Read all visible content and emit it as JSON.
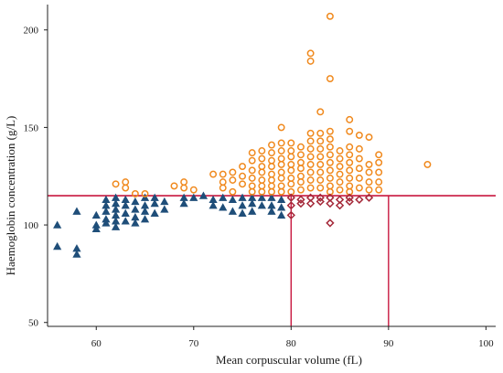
{
  "chart_data": {
    "type": "scatter",
    "title": "",
    "xlabel": "Mean corpuscular volume (fL)",
    "ylabel": "Haemoglobin concentration (g/L)",
    "xlim": [
      55,
      101
    ],
    "ylim": [
      48,
      213
    ],
    "xticks": [
      60,
      70,
      80,
      90,
      100
    ],
    "yticks": [
      50,
      100,
      150,
      200
    ],
    "reference_lines": {
      "horizontal": [
        {
          "y": 115,
          "color": "#c8173f"
        }
      ],
      "vertical": [
        {
          "x": 80,
          "color": "#c8173f"
        },
        {
          "x": 90,
          "color": "#c8173f"
        }
      ]
    },
    "series": [
      {
        "marker": "triangle",
        "color": "#1f4e79",
        "points": [
          [
            56,
            100
          ],
          [
            56,
            89
          ],
          [
            58,
            107
          ],
          [
            58,
            88
          ],
          [
            58,
            85
          ],
          [
            60,
            105
          ],
          [
            60,
            100
          ],
          [
            60,
            98
          ],
          [
            61,
            113
          ],
          [
            61,
            110
          ],
          [
            61,
            107
          ],
          [
            61,
            103
          ],
          [
            61,
            101
          ],
          [
            62,
            114
          ],
          [
            62,
            111
          ],
          [
            62,
            108
          ],
          [
            62,
            105
          ],
          [
            62,
            102
          ],
          [
            62,
            99
          ],
          [
            63,
            113
          ],
          [
            63,
            110
          ],
          [
            63,
            106
          ],
          [
            63,
            102
          ],
          [
            64,
            112
          ],
          [
            64,
            108
          ],
          [
            64,
            104
          ],
          [
            64,
            101
          ],
          [
            65,
            114
          ],
          [
            65,
            110
          ],
          [
            65,
            107
          ],
          [
            65,
            103
          ],
          [
            66,
            114
          ],
          [
            66,
            111
          ],
          [
            66,
            106
          ],
          [
            67,
            112
          ],
          [
            67,
            108
          ],
          [
            69,
            114
          ],
          [
            69,
            111
          ],
          [
            70,
            114
          ],
          [
            71,
            115
          ],
          [
            72,
            113
          ],
          [
            72,
            110
          ],
          [
            73,
            114
          ],
          [
            73,
            109
          ],
          [
            74,
            113
          ],
          [
            74,
            107
          ],
          [
            75,
            114
          ],
          [
            75,
            110
          ],
          [
            75,
            106
          ],
          [
            76,
            114
          ],
          [
            76,
            111
          ],
          [
            76,
            107
          ],
          [
            77,
            114
          ],
          [
            77,
            110
          ],
          [
            78,
            114
          ],
          [
            78,
            110
          ],
          [
            78,
            107
          ],
          [
            79,
            113
          ],
          [
            79,
            109
          ],
          [
            79,
            105
          ]
        ]
      },
      {
        "marker": "circle",
        "color": "#f0891d",
        "points": [
          [
            62,
            121
          ],
          [
            63,
            122
          ],
          [
            63,
            119
          ],
          [
            64,
            116
          ],
          [
            65,
            116
          ],
          [
            68,
            120
          ],
          [
            69,
            122
          ],
          [
            69,
            119
          ],
          [
            70,
            118
          ],
          [
            72,
            126
          ],
          [
            73,
            126
          ],
          [
            73,
            122
          ],
          [
            73,
            119
          ],
          [
            74,
            127
          ],
          [
            74,
            123
          ],
          [
            74,
            117
          ],
          [
            75,
            130
          ],
          [
            75,
            125
          ],
          [
            75,
            121
          ],
          [
            76,
            137
          ],
          [
            76,
            133
          ],
          [
            76,
            128
          ],
          [
            76,
            124
          ],
          [
            76,
            120
          ],
          [
            76,
            117
          ],
          [
            77,
            138
          ],
          [
            77,
            134
          ],
          [
            77,
            130
          ],
          [
            77,
            127
          ],
          [
            77,
            123
          ],
          [
            77,
            120
          ],
          [
            77,
            117
          ],
          [
            78,
            141
          ],
          [
            78,
            137
          ],
          [
            78,
            133
          ],
          [
            78,
            130
          ],
          [
            78,
            126
          ],
          [
            78,
            123
          ],
          [
            78,
            120
          ],
          [
            78,
            117
          ],
          [
            79,
            150
          ],
          [
            79,
            142
          ],
          [
            79,
            138
          ],
          [
            79,
            134
          ],
          [
            79,
            131
          ],
          [
            79,
            127
          ],
          [
            79,
            124
          ],
          [
            79,
            120
          ],
          [
            79,
            117
          ],
          [
            80,
            142
          ],
          [
            80,
            138
          ],
          [
            80,
            135
          ],
          [
            80,
            131
          ],
          [
            80,
            128
          ],
          [
            80,
            124
          ],
          [
            80,
            121
          ],
          [
            80,
            117
          ],
          [
            81,
            140
          ],
          [
            81,
            136
          ],
          [
            81,
            132
          ],
          [
            81,
            129
          ],
          [
            81,
            125
          ],
          [
            81,
            122
          ],
          [
            81,
            118
          ],
          [
            82,
            188
          ],
          [
            82,
            184
          ],
          [
            82,
            147
          ],
          [
            82,
            143
          ],
          [
            82,
            139
          ],
          [
            82,
            135
          ],
          [
            82,
            131
          ],
          [
            82,
            127
          ],
          [
            82,
            123
          ],
          [
            82,
            119
          ],
          [
            83,
            158
          ],
          [
            83,
            147
          ],
          [
            83,
            143
          ],
          [
            83,
            139
          ],
          [
            83,
            135
          ],
          [
            83,
            131
          ],
          [
            83,
            127
          ],
          [
            83,
            123
          ],
          [
            83,
            119
          ],
          [
            84,
            207
          ],
          [
            84,
            175
          ],
          [
            84,
            148
          ],
          [
            84,
            144
          ],
          [
            84,
            140
          ],
          [
            84,
            136
          ],
          [
            84,
            132
          ],
          [
            84,
            128
          ],
          [
            84,
            124
          ],
          [
            84,
            120
          ],
          [
            84,
            117
          ],
          [
            85,
            138
          ],
          [
            85,
            134
          ],
          [
            85,
            130
          ],
          [
            85,
            126
          ],
          [
            85,
            122
          ],
          [
            85,
            118
          ],
          [
            86,
            154
          ],
          [
            86,
            148
          ],
          [
            86,
            140
          ],
          [
            86,
            136
          ],
          [
            86,
            132
          ],
          [
            86,
            128
          ],
          [
            86,
            124
          ],
          [
            86,
            120
          ],
          [
            86,
            117
          ],
          [
            87,
            146
          ],
          [
            87,
            139
          ],
          [
            87,
            134
          ],
          [
            87,
            129
          ],
          [
            87,
            124
          ],
          [
            87,
            119
          ],
          [
            88,
            145
          ],
          [
            88,
            131
          ],
          [
            88,
            127
          ],
          [
            88,
            122
          ],
          [
            88,
            118
          ],
          [
            89,
            136
          ],
          [
            89,
            132
          ],
          [
            89,
            127
          ],
          [
            89,
            122
          ],
          [
            89,
            118
          ],
          [
            94,
            131
          ]
        ]
      },
      {
        "marker": "diamond",
        "color": "#a52a3a",
        "points": [
          [
            80,
            114
          ],
          [
            80,
            110
          ],
          [
            80,
            105
          ],
          [
            81,
            113
          ],
          [
            81,
            111
          ],
          [
            82,
            114
          ],
          [
            82,
            111
          ],
          [
            83,
            114
          ],
          [
            83,
            112
          ],
          [
            84,
            114
          ],
          [
            84,
            111
          ],
          [
            84,
            101
          ],
          [
            85,
            113
          ],
          [
            85,
            110
          ],
          [
            86,
            114
          ],
          [
            86,
            112
          ],
          [
            87,
            113
          ],
          [
            88,
            114
          ]
        ]
      }
    ]
  }
}
